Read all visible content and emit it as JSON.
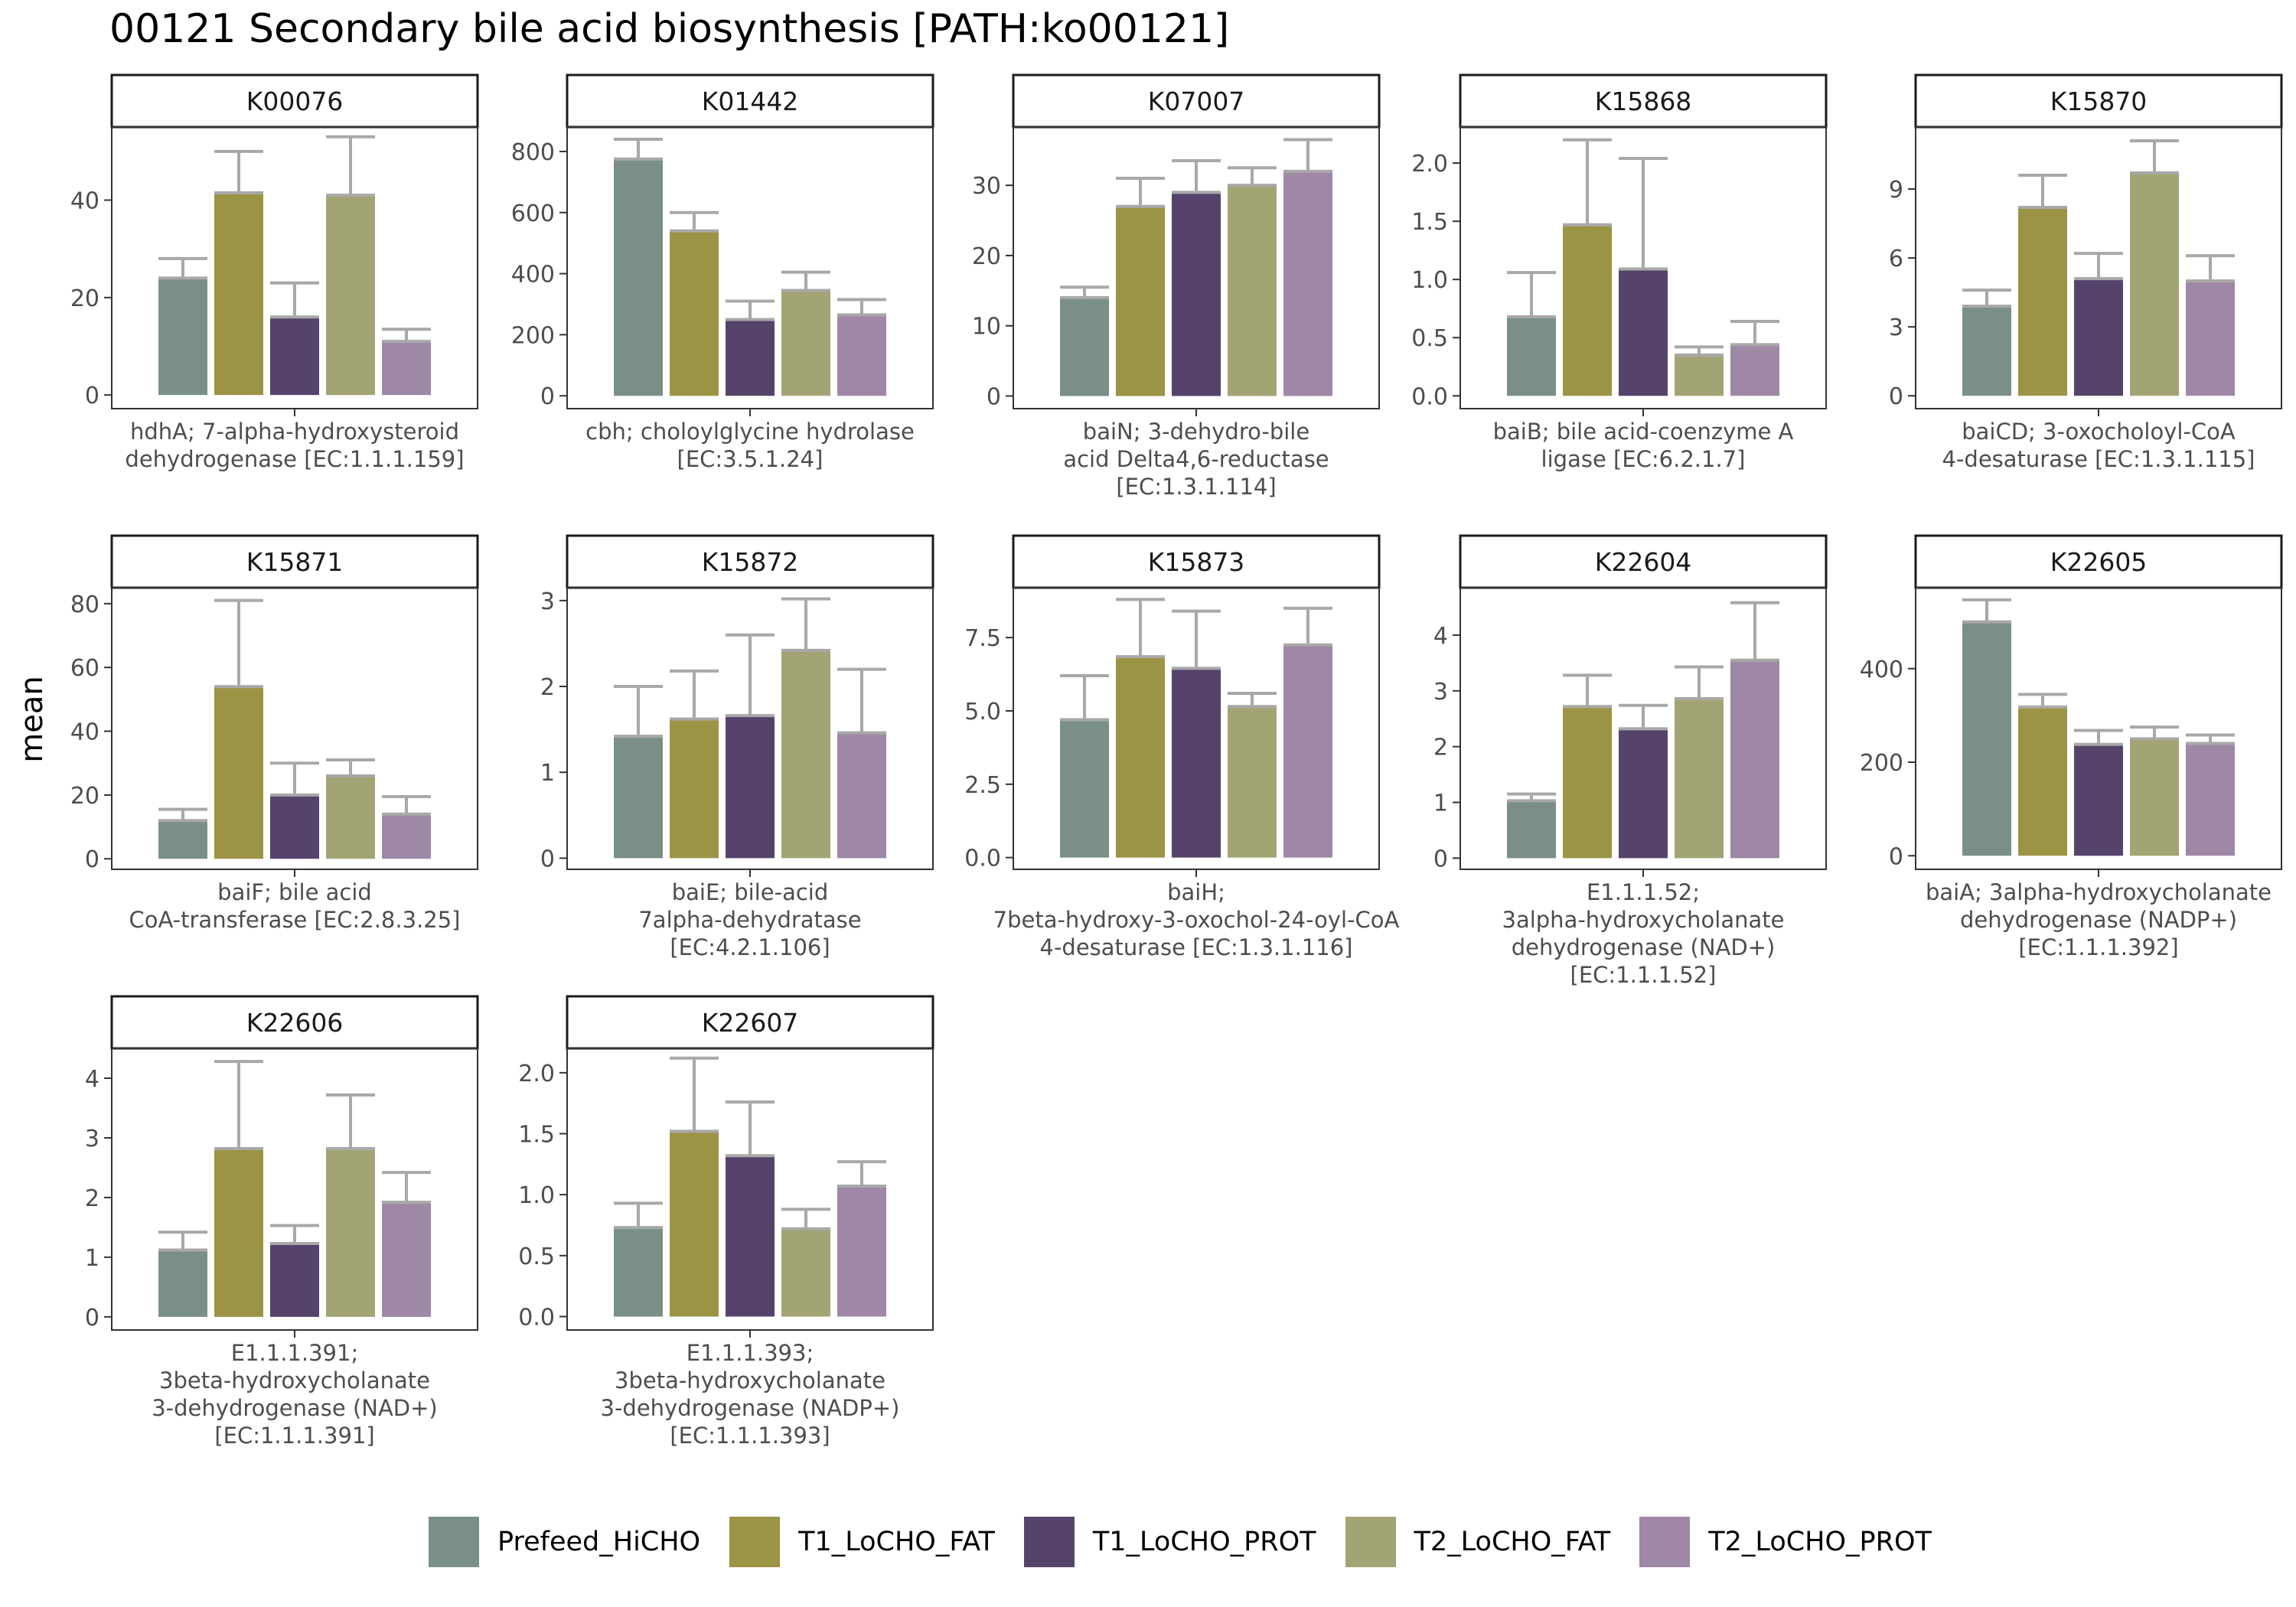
{
  "chart_data": {
    "type": "bar",
    "title": "00121 Secondary bile acid biosynthesis [PATH:ko00121]",
    "ylabel": "mean",
    "xlabel": "",
    "grid": false,
    "legend_position": "bottom",
    "error_bars": true,
    "series": [
      {
        "name": "Prefeed_HiCHO",
        "color": "#7a8f87"
      },
      {
        "name": "T1_LoCHO_FAT",
        "color": "#9c9445"
      },
      {
        "name": "T1_LoCHO_PROT",
        "color": "#55436c"
      },
      {
        "name": "T2_LoCHO_FAT",
        "color": "#a3a473"
      },
      {
        "name": "T2_LoCHO_PROT",
        "color": "#9e88a6"
      }
    ],
    "panels": [
      {
        "id": "K00076",
        "label": [
          "hdhA; 7-alpha-hydroxysteroid",
          "dehydrogenase [EC:1.1.1.159]"
        ],
        "ylim": [
          -2.8,
          55
        ],
        "ticks": [
          0,
          20,
          40
        ],
        "tick_labels": [
          "0",
          "20",
          "40"
        ],
        "values": [
          24,
          41.5,
          16,
          41,
          11
        ],
        "errors": [
          28,
          50,
          23,
          53,
          13.5
        ]
      },
      {
        "id": "K01442",
        "label": [
          "cbh; choloylglycine hydrolase",
          "[EC:3.5.1.24]"
        ],
        "ylim": [
          -42,
          880
        ],
        "ticks": [
          0,
          200,
          400,
          600,
          800
        ],
        "tick_labels": [
          "0",
          "200",
          "400",
          "600",
          "800"
        ],
        "values": [
          775,
          540,
          250,
          345,
          265
        ],
        "errors": [
          840,
          600,
          310,
          405,
          315
        ]
      },
      {
        "id": "K07007",
        "label": [
          "baiN; 3-dehydro-bile",
          "acid Delta4,6-reductase",
          "[EC:1.3.1.114]"
        ],
        "ylim": [
          -1.8,
          38.3
        ],
        "ticks": [
          0,
          10,
          20,
          30
        ],
        "tick_labels": [
          "0",
          "10",
          "20",
          "30"
        ],
        "values": [
          14,
          27,
          29,
          30,
          32
        ],
        "errors": [
          15.5,
          31,
          33.5,
          32.5,
          36.5
        ]
      },
      {
        "id": "K15868",
        "label": [
          "baiB; bile acid-coenzyme A",
          "ligase [EC:6.2.1.7]"
        ],
        "ylim": [
          -0.11,
          2.31
        ],
        "ticks": [
          0,
          0.5,
          1,
          1.5,
          2
        ],
        "tick_labels": [
          "0.0",
          "0.5",
          "1.0",
          "1.5",
          "2.0"
        ],
        "values": [
          0.68,
          1.47,
          1.09,
          0.35,
          0.44
        ],
        "errors": [
          1.06,
          2.2,
          2.04,
          0.42,
          0.64
        ]
      },
      {
        "id": "K15870",
        "label": [
          "baiCD; 3-oxocholoyl-CoA",
          "4-desaturase [EC:1.3.1.115]"
        ],
        "ylim": [
          -0.56,
          11.7
        ],
        "ticks": [
          0,
          3,
          6,
          9
        ],
        "tick_labels": [
          "0",
          "3",
          "6",
          "9"
        ],
        "values": [
          3.9,
          8.2,
          5.1,
          9.7,
          5.0
        ],
        "errors": [
          4.6,
          9.6,
          6.2,
          11.1,
          6.1
        ]
      },
      {
        "id": "K15871",
        "label": [
          "baiF; bile acid",
          "CoA-transferase [EC:2.8.3.25]"
        ],
        "ylim": [
          -3.3,
          85
        ],
        "ticks": [
          0,
          20,
          40,
          60,
          80
        ],
        "tick_labels": [
          "0",
          "20",
          "40",
          "60",
          "80"
        ],
        "values": [
          12,
          54,
          20,
          26,
          14
        ],
        "errors": [
          15.5,
          81,
          30,
          31,
          19.5
        ]
      },
      {
        "id": "K15872",
        "label": [
          "baiE; bile-acid",
          "7alpha-dehydratase",
          "[EC:4.2.1.106]"
        ],
        "ylim": [
          -0.13,
          3.15
        ],
        "ticks": [
          0,
          1,
          2,
          3
        ],
        "tick_labels": [
          "0",
          "1",
          "2",
          "3"
        ],
        "values": [
          1.42,
          1.62,
          1.66,
          2.42,
          1.46
        ],
        "errors": [
          2.0,
          2.18,
          2.6,
          3.02,
          2.2
        ]
      },
      {
        "id": "K15873",
        "label": [
          "baiH;",
          "7beta-hydroxy-3-oxochol-24-oyl-CoA",
          "4-desaturase [EC:1.3.1.116]"
        ],
        "ylim": [
          -0.4,
          9.2
        ],
        "ticks": [
          0,
          2.5,
          5,
          7.5
        ],
        "tick_labels": [
          "0.0",
          "2.5",
          "5.0",
          "7.5"
        ],
        "values": [
          4.7,
          6.85,
          6.45,
          5.15,
          7.25
        ],
        "errors": [
          6.2,
          8.8,
          8.4,
          5.6,
          8.5
        ]
      },
      {
        "id": "K22604",
        "label": [
          "E1.1.1.52;",
          "3alpha-hydroxycholanate",
          "dehydrogenase (NAD+)",
          "[EC:1.1.1.52]"
        ],
        "ylim": [
          -0.2,
          4.85
        ],
        "ticks": [
          0,
          1,
          2,
          3,
          4
        ],
        "tick_labels": [
          "0",
          "1",
          "2",
          "3",
          "4"
        ],
        "values": [
          1.03,
          2.72,
          2.32,
          2.86,
          3.55
        ],
        "errors": [
          1.15,
          3.28,
          2.74,
          3.43,
          4.58
        ]
      },
      {
        "id": "K22605",
        "label": [
          "baiA; 3alpha-hydroxycholanate",
          "dehydrogenase (NADP+)",
          "[EC:1.1.1.392]"
        ],
        "ylim": [
          -29,
          573
        ],
        "ticks": [
          0,
          200,
          400
        ],
        "tick_labels": [
          "0",
          "200",
          "400"
        ],
        "values": [
          500,
          318,
          238,
          250,
          240
        ],
        "errors": [
          547,
          345,
          268,
          275,
          258
        ]
      },
      {
        "id": "K22606",
        "label": [
          "E1.1.1.391;",
          "3beta-hydroxycholanate",
          "3-dehydrogenase (NAD+)",
          "[EC:1.1.1.391]"
        ],
        "ylim": [
          -0.22,
          4.5
        ],
        "ticks": [
          0,
          1,
          2,
          3,
          4
        ],
        "tick_labels": [
          "0",
          "1",
          "2",
          "3",
          "4"
        ],
        "values": [
          1.12,
          2.82,
          1.23,
          2.82,
          1.92
        ],
        "errors": [
          1.42,
          4.28,
          1.53,
          3.72,
          2.42
        ]
      },
      {
        "id": "K22607",
        "label": [
          "E1.1.1.393;",
          "3beta-hydroxycholanate",
          "3-dehydrogenase (NADP+)",
          "[EC:1.1.1.393]"
        ],
        "ylim": [
          -0.11,
          2.2
        ],
        "ticks": [
          0,
          0.5,
          1,
          1.5,
          2
        ],
        "tick_labels": [
          "0.0",
          "0.5",
          "1.0",
          "1.5",
          "2.0"
        ],
        "values": [
          0.73,
          1.52,
          1.32,
          0.72,
          1.07
        ],
        "errors": [
          0.93,
          2.12,
          1.76,
          0.88,
          1.27
        ]
      }
    ]
  }
}
